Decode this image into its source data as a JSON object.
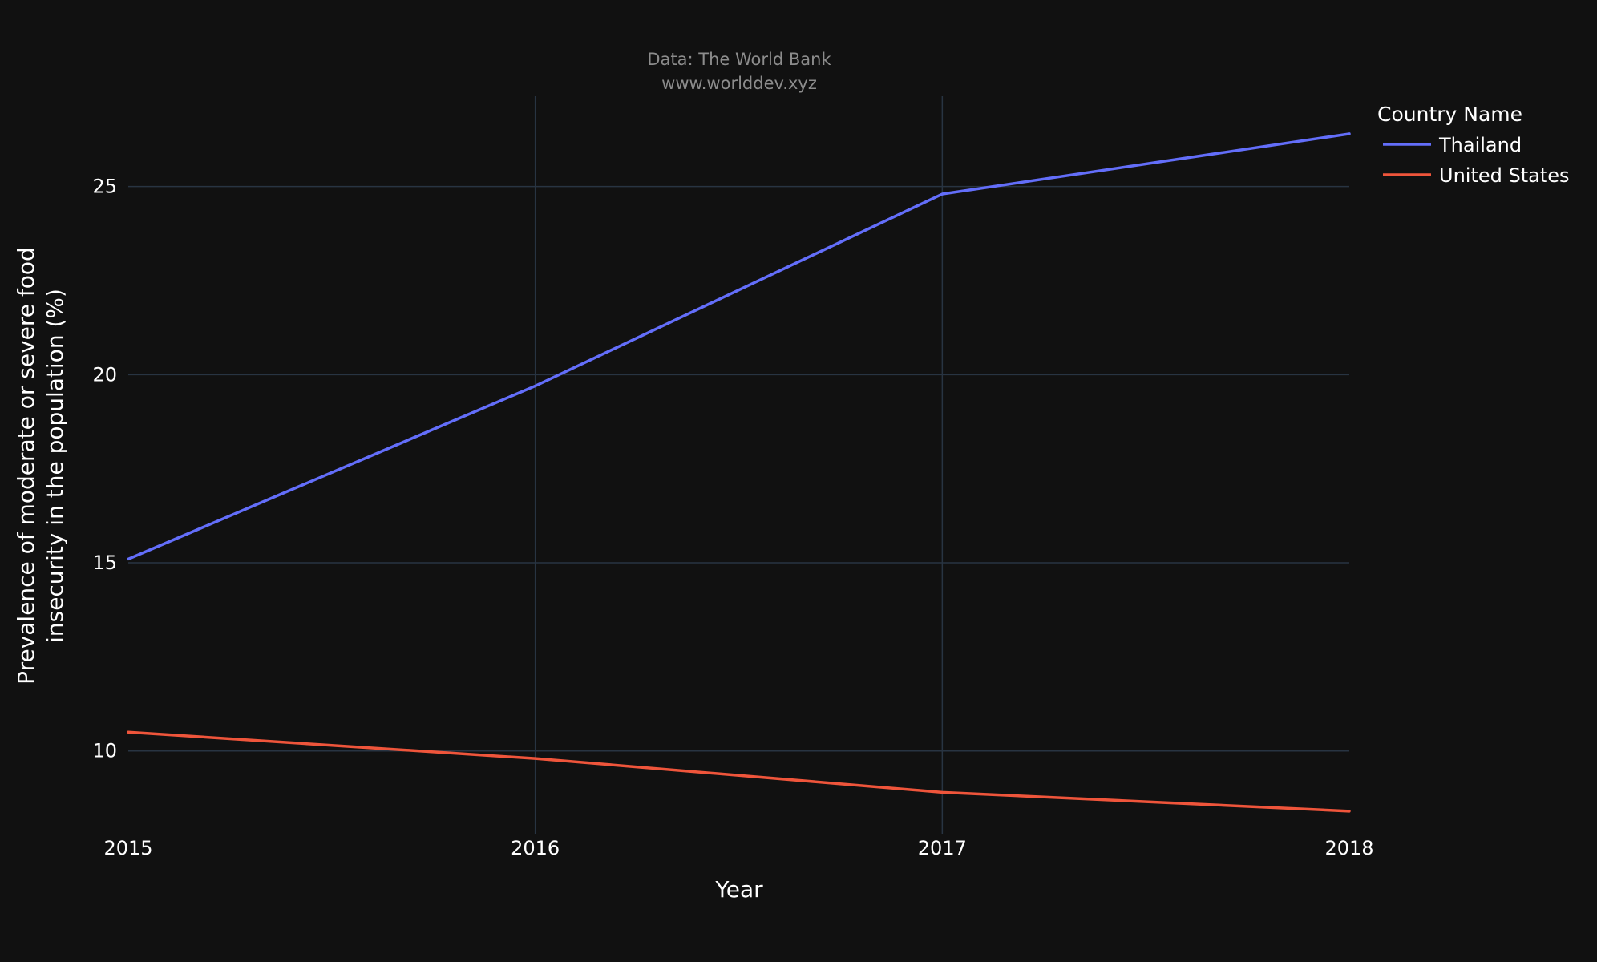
{
  "chart_data": {
    "type": "line",
    "subtitle_lines": [
      "Data: The World Bank",
      "www.worlddev.xyz"
    ],
    "xlabel": "Year",
    "ylabel_lines": [
      "Prevalence of moderate or severe food",
      "insecurity in the population (%)"
    ],
    "x": [
      2015,
      2016,
      2017,
      2018
    ],
    "x_ticks": [
      "2015",
      "2016",
      "2017",
      "2018"
    ],
    "y_ticks": [
      10,
      15,
      20,
      25
    ],
    "xlim": [
      2015,
      2018
    ],
    "ylim": [
      7.8,
      27.4
    ],
    "grid": true,
    "legend": {
      "title": "Country Name",
      "placement": "top-right outside"
    },
    "series": [
      {
        "name": "Thailand",
        "color": "#636efa",
        "values": [
          15.1,
          19.7,
          24.8,
          26.4
        ]
      },
      {
        "name": "United States",
        "color": "#ef553b",
        "values": [
          10.5,
          9.8,
          8.9,
          8.4
        ]
      }
    ]
  }
}
